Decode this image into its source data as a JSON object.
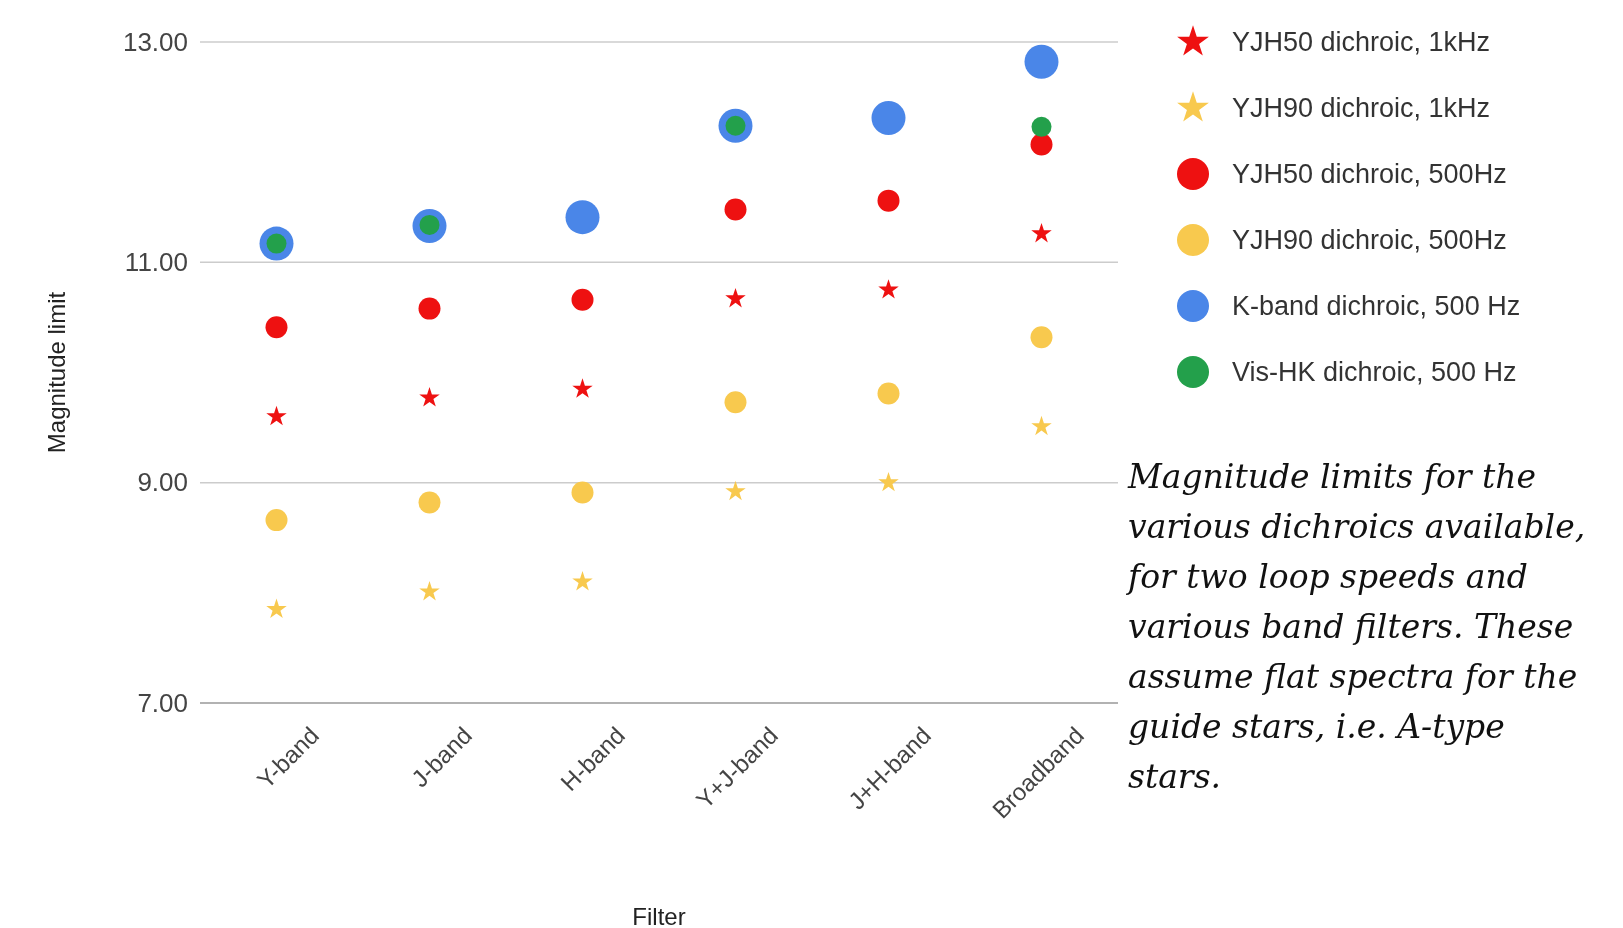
{
  "chart_data": {
    "type": "scatter",
    "xlabel": "Filter",
    "ylabel": "Magnitude limit",
    "categories": [
      "Y-band",
      "J-band",
      "H-band",
      "Y+J-band",
      "J+H-band",
      "Broadband"
    ],
    "ylim": [
      7,
      13
    ],
    "yticks": [
      {
        "value": 7,
        "label": "7.00"
      },
      {
        "value": 9,
        "label": "9.00"
      },
      {
        "value": 11,
        "label": "11.00"
      },
      {
        "value": 13,
        "label": "13.00"
      }
    ],
    "grid": "y",
    "legend": "right",
    "series": [
      {
        "name": "YJH50 dichroic, 1kHz",
        "color": "#ee1111",
        "marker": "star",
        "values": [
          9.6,
          9.77,
          9.85,
          10.67,
          10.75,
          11.26
        ]
      },
      {
        "name": "YJH90 dichroic, 1kHz",
        "color": "#f8c94e",
        "marker": "star",
        "values": [
          7.85,
          8.01,
          8.1,
          8.92,
          9.0,
          9.51
        ]
      },
      {
        "name": "YJH50 dichroic, 500Hz",
        "color": "#ee1111",
        "marker": "circle",
        "values": [
          10.41,
          10.58,
          10.66,
          11.48,
          11.56,
          12.07
        ]
      },
      {
        "name": "YJH90 dichroic, 500Hz",
        "color": "#f8c94e",
        "marker": "circle",
        "values": [
          8.66,
          8.82,
          8.91,
          9.73,
          9.81,
          10.32
        ]
      },
      {
        "name": "K-band dichroic, 500 Hz",
        "color": "#4a86e8",
        "marker": "circle",
        "values": [
          11.17,
          11.33,
          11.41,
          12.24,
          12.31,
          12.82
        ]
      },
      {
        "name": "Vis-HK dichroic, 500 Hz",
        "color": "#23a04b",
        "marker": "circle",
        "values": [
          11.17,
          11.34,
          null,
          12.24,
          null,
          12.23
        ]
      }
    ],
    "annotations": [
      "Magnitude limits for the various dichroics available, for two loop speeds and various band filters. These assume flat spectra for the guide stars, i.e. A-type stars."
    ]
  }
}
